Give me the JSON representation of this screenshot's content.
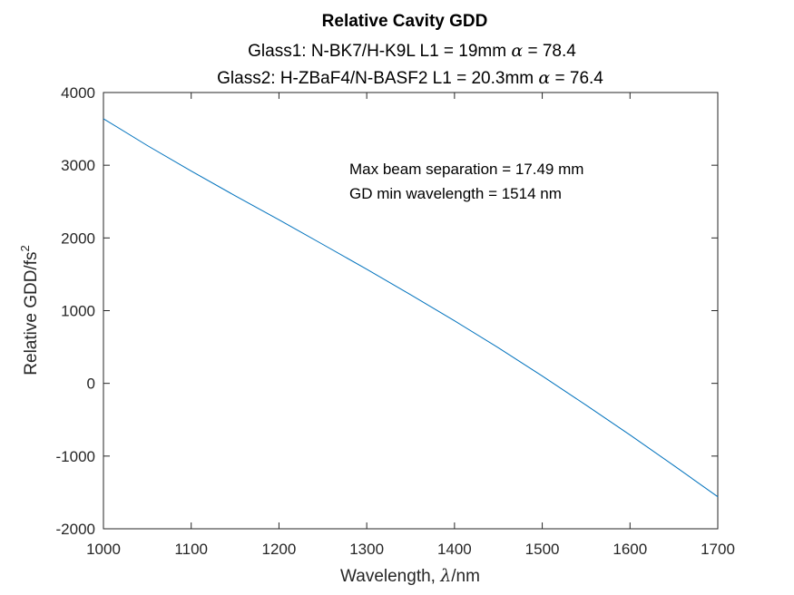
{
  "chart_data": {
    "type": "line",
    "title": "Relative Cavity GDD",
    "subtitle_lines": [
      {
        "prefix": "Glass1: N-BK7/H-K9L   L1 = 19mm  ",
        "symbol": "α",
        "suffix": " = 78.4"
      },
      {
        "prefix": "Glass2: H-ZBaF4/N-BASF2   L1 = 20.3mm  ",
        "symbol": "α",
        "suffix": " = 76.4"
      }
    ],
    "xlabel": {
      "prefix": "Wavelength, ",
      "symbol": "λ",
      "suffix": "/nm"
    },
    "ylabel": {
      "main": "Relative GDD/fs",
      "superscript": "2"
    },
    "xlim": [
      1000,
      1700
    ],
    "ylim": [
      -2000,
      4000
    ],
    "xticks": [
      1000,
      1100,
      1200,
      1300,
      1400,
      1500,
      1600,
      1700
    ],
    "yticks": [
      -2000,
      -1000,
      0,
      1000,
      2000,
      3000,
      4000
    ],
    "grid": false,
    "annotations": [
      "Max beam separation = 17.49 mm",
      "GD min wavelength = 1514 nm"
    ],
    "series": [
      {
        "color": "#0072bd",
        "x": [
          1000,
          1050,
          1100,
          1150,
          1200,
          1250,
          1300,
          1350,
          1400,
          1450,
          1500,
          1550,
          1600,
          1650,
          1700
        ],
        "y": [
          3640,
          3270,
          2920,
          2580,
          2250,
          1910,
          1570,
          1220,
          860,
          490,
          100,
          -300,
          -710,
          -1130,
          -1560
        ]
      }
    ]
  }
}
